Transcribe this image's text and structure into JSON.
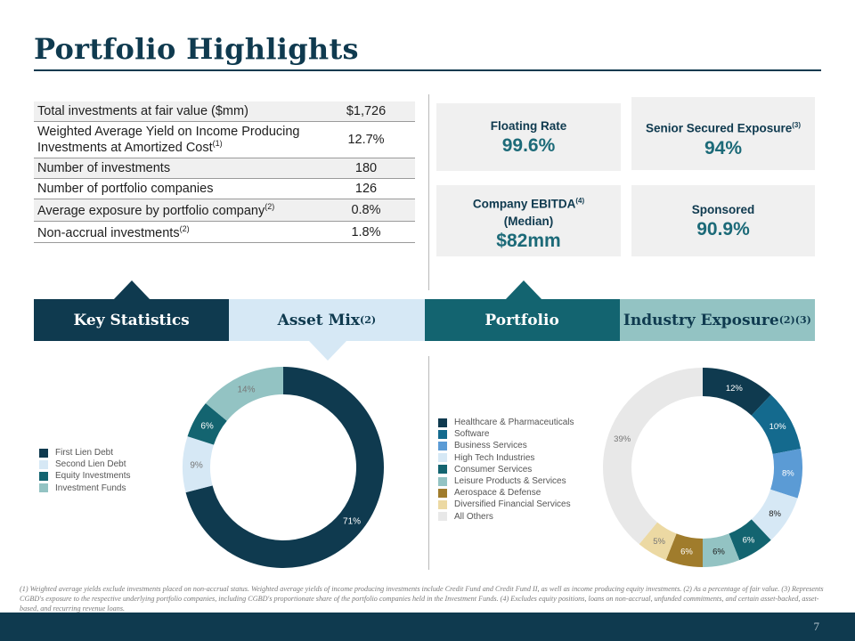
{
  "page": {
    "title": "Portfolio Highlights",
    "page_number": "7"
  },
  "stats": [
    {
      "label": "Total investments at fair value ($mm)",
      "note": "",
      "value": "$1,726"
    },
    {
      "label": "Weighted Average Yield on Income Producing Investments at Amortized Cost",
      "note": "(1)",
      "value": "12.7%"
    },
    {
      "label": "Number of investments",
      "note": "",
      "value": "180"
    },
    {
      "label": "Number of portfolio companies",
      "note": "",
      "value": "126"
    },
    {
      "label": "Average exposure by portfolio company",
      "note": "(2)",
      "value": "0.8%"
    },
    {
      "label": "Non-accrual investments",
      "note": "(2)",
      "value": "1.8%"
    }
  ],
  "cards": {
    "floating_rate": {
      "label": "Floating Rate",
      "value": "99.6%"
    },
    "senior_secured": {
      "label": "Senior Secured Exposure",
      "note": "(3)",
      "value": "94%"
    },
    "ebitda": {
      "label": "Company EBITDA",
      "note": "(4)",
      "label2": "(Median)",
      "value": "$82mm"
    },
    "sponsored": {
      "label": "Sponsored",
      "value": "90.9%"
    }
  },
  "tabs": {
    "key_statistics": "Key Statistics",
    "asset_mix": "Asset Mix",
    "asset_mix_note": "(2)",
    "portfolio": "Portfolio",
    "industry_exposure": "Industry Exposure",
    "industry_exposure_note": "(2)(3)"
  },
  "colors": {
    "navy": "#0f3a4f",
    "light_blue": "#d6e8f5",
    "teal": "#136470",
    "sage": "#93c3c3"
  },
  "chart_data": [
    {
      "type": "pie",
      "title": "Asset Mix",
      "donut": true,
      "categories": [
        "First Lien Debt",
        "Second Lien Debt",
        "Equity Investments",
        "Investment Funds"
      ],
      "values": [
        71,
        9,
        6,
        14
      ],
      "labels": [
        "71%",
        "9%",
        "6%",
        "14%"
      ],
      "colors": [
        "#0f3a4f",
        "#d6e8f5",
        "#136470",
        "#93c3c3"
      ],
      "label_colors": [
        "#ffffff",
        "#777777",
        "#ffffff",
        "#777777"
      ],
      "legend": "left"
    },
    {
      "type": "pie",
      "title": "Industry Exposure",
      "donut": true,
      "categories": [
        "Healthcare & Pharmaceuticals",
        "Software",
        "Business Services",
        "High Tech Industries",
        "Consumer Services",
        "Leisure Products & Services",
        "Aerospace & Defense",
        "Diversified Financial Services",
        "All Others"
      ],
      "values": [
        12,
        10,
        8,
        8,
        6,
        6,
        6,
        5,
        39
      ],
      "labels": [
        "12%",
        "10%",
        "8%",
        "8%",
        "6%",
        "6%",
        "6%",
        "5%",
        "39%"
      ],
      "colors": [
        "#0f3a4f",
        "#146a8e",
        "#5b9bd5",
        "#d6e8f5",
        "#136470",
        "#93c3c3",
        "#a07c2c",
        "#ecd9a3",
        "#e8e8e8"
      ],
      "label_colors": [
        "#ffffff",
        "#ffffff",
        "#ffffff",
        "#1e1e1e",
        "#ffffff",
        "#1e1e1e",
        "#ffffff",
        "#777777",
        "#777777"
      ],
      "legend": "left"
    }
  ],
  "footnote": "(1) Weighted average yields exclude investments placed on non-accrual status. Weighted average yields of income producing investments include Credit Fund and Credit Fund II, as well as income producing equity investments. (2) As a percentage of fair value. (3) Represents CGBD's exposure to the respective underlying portfolio companies, including CGBD's proportionate share of the portfolio companies held in the Investment Funds. (4) Excludes equity positions, loans on non-accrual, unfunded commitments, and certain asset-backed, asset-based, and recurring revenue loans."
}
